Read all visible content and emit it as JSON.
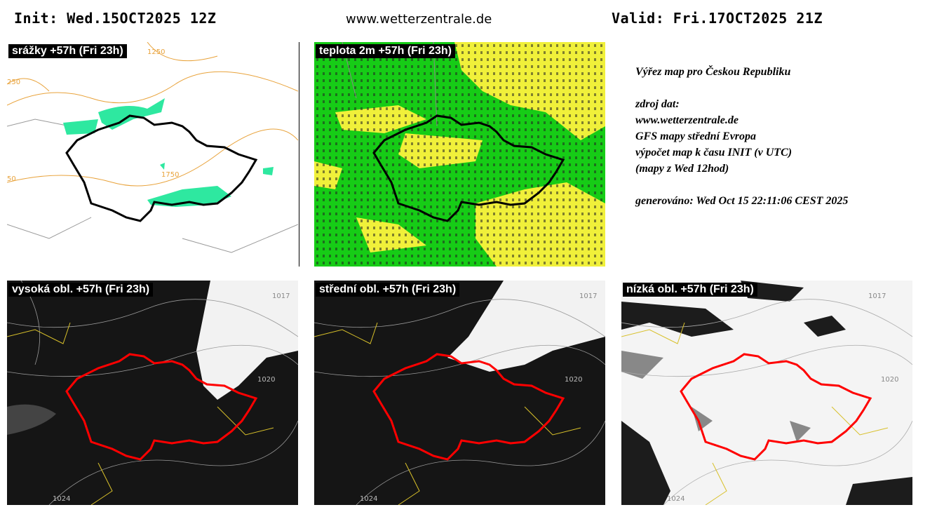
{
  "header": {
    "init": "Init: Wed.15OCT2025 12Z",
    "site": "www.wetterzentrale.de",
    "valid": "Valid: Fri.17OCT2025 21Z"
  },
  "panels": [
    {
      "title": "srážky +57h (Fri 23h)",
      "labels": [
        "1250",
        "1750",
        "250",
        "50"
      ]
    },
    {
      "title": "teplota 2m +57h (Fri 23h)",
      "labels": []
    },
    {
      "title": "vysoká obl. +57h (Fri 23h)",
      "labels": [
        "1017",
        "1020",
        "1024"
      ]
    },
    {
      "title": "střední obl. +57h (Fri 23h)",
      "labels": [
        "1017",
        "1020",
        "1024"
      ]
    },
    {
      "title": "nízká obl. +57h (Fri 23h)",
      "labels": [
        "1017",
        "1020",
        "1024"
      ]
    }
  ],
  "info": {
    "lines": [
      "Výřez map pro Českou Republiku",
      "zdroj dat:",
      "www.wetterzentrale.de",
      "GFS mapy střední Evropa",
      "výpočet map k času INIT (v UTC)",
      "(mapy z Wed 12hod)",
      "generováno: Wed Oct 15 22:11:06 CEST 2025"
    ]
  }
}
